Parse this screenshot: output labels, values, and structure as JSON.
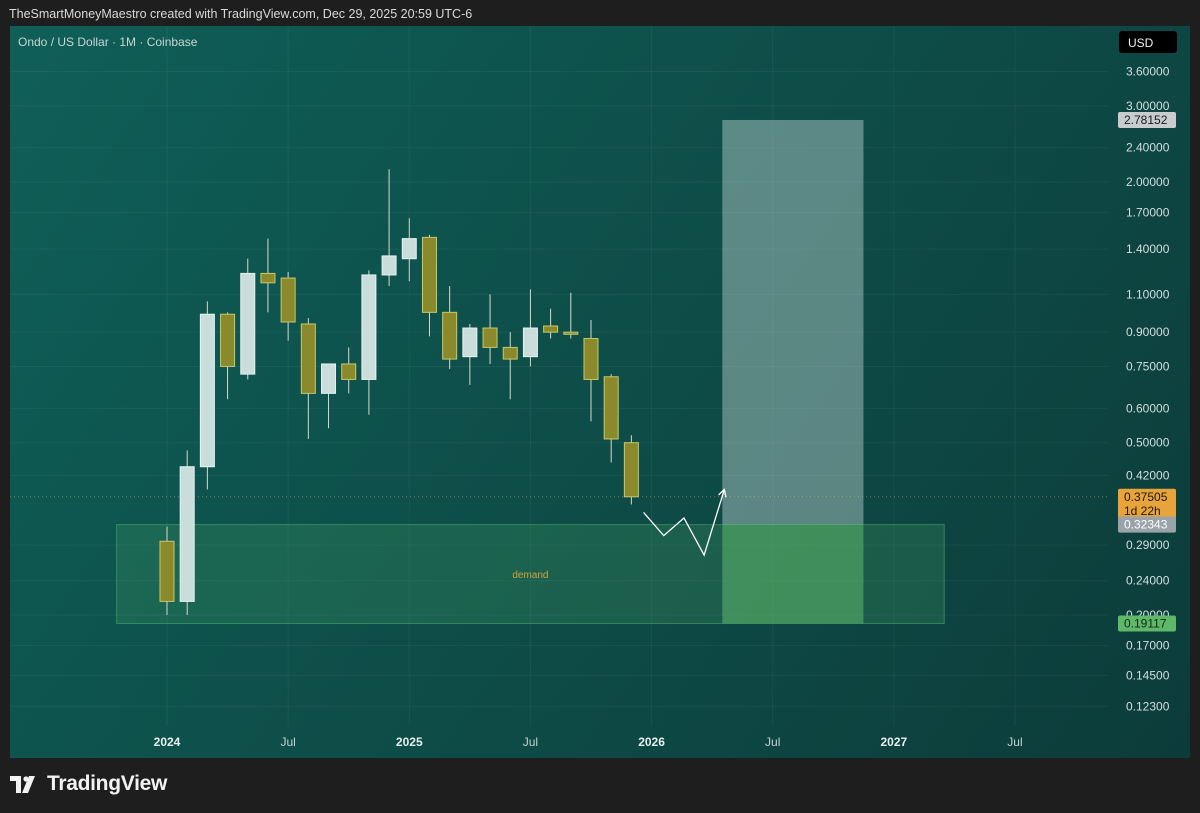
{
  "header": {
    "credit": "TheSmartMoneyMaestro created with TradingView.com, Dec 29, 2025 20:59 UTC-6"
  },
  "symbol": "Ondo / US Dollar · 1M · Coinbase",
  "currency_button": "USD",
  "branding": {
    "logo_text": "TradingView"
  },
  "colors": {
    "bull": "#c9dedb",
    "bear": "#8a8a2c",
    "wick": "#d8d8cc",
    "demand_fill": "#4fae6a",
    "target_fill": "#c9dedb",
    "price_tag": "#e8a33a",
    "entry_tag": "#9aa3a8",
    "target_tag": "#c9cccf",
    "stop_tag": "#5fb86a"
  },
  "price_tags": {
    "target": "2.78152",
    "current": "0.37505",
    "countdown": "1d 22h",
    "entry": "0.32343",
    "stop": "0.19117"
  },
  "annotations": {
    "demand_label": "demand"
  },
  "chart_data": {
    "type": "candlestick",
    "title": "Ondo / US Dollar · 1M · Coinbase",
    "y_scale": "log",
    "y_ticks": [
      "3.60000",
      "3.00000",
      "2.40000",
      "2.00000",
      "1.70000",
      "1.40000",
      "1.10000",
      "0.90000",
      "0.75000",
      "0.60000",
      "0.50000",
      "0.42000",
      "0.29000",
      "0.24000",
      "0.20000",
      "0.17000",
      "0.14500",
      "0.12300"
    ],
    "x_ticks": [
      {
        "label": "2024",
        "date": "2024-01",
        "bold": true
      },
      {
        "label": "Jul",
        "date": "2024-07",
        "bold": false
      },
      {
        "label": "2025",
        "date": "2025-01",
        "bold": true
      },
      {
        "label": "Jul",
        "date": "2025-07",
        "bold": false
      },
      {
        "label": "2026",
        "date": "2026-01",
        "bold": true
      },
      {
        "label": "Jul",
        "date": "2026-07",
        "bold": false
      },
      {
        "label": "2027",
        "date": "2027-01",
        "bold": true
      },
      {
        "label": "Jul",
        "date": "2027-07",
        "bold": false
      }
    ],
    "candles": [
      {
        "date": "2024-01",
        "open": 0.296,
        "high": 0.32,
        "low": 0.2,
        "close": 0.215
      },
      {
        "date": "2024-02",
        "open": 0.215,
        "high": 0.48,
        "low": 0.2,
        "close": 0.44
      },
      {
        "date": "2024-03",
        "open": 0.44,
        "high": 1.06,
        "low": 0.39,
        "close": 0.99
      },
      {
        "date": "2024-04",
        "open": 0.99,
        "high": 1.0,
        "low": 0.63,
        "close": 0.75
      },
      {
        "date": "2024-05",
        "open": 0.72,
        "high": 1.33,
        "low": 0.7,
        "close": 1.23
      },
      {
        "date": "2024-06",
        "open": 1.23,
        "high": 1.48,
        "low": 1.0,
        "close": 1.17
      },
      {
        "date": "2024-07",
        "open": 1.2,
        "high": 1.24,
        "low": 0.86,
        "close": 0.95
      },
      {
        "date": "2024-08",
        "open": 0.94,
        "high": 0.97,
        "low": 0.51,
        "close": 0.65
      },
      {
        "date": "2024-09",
        "open": 0.65,
        "high": 0.76,
        "low": 0.54,
        "close": 0.76
      },
      {
        "date": "2024-10",
        "open": 0.76,
        "high": 0.83,
        "low": 0.65,
        "close": 0.7
      },
      {
        "date": "2024-11",
        "open": 0.7,
        "high": 1.25,
        "low": 0.58,
        "close": 1.22
      },
      {
        "date": "2024-12",
        "open": 1.22,
        "high": 2.14,
        "low": 1.15,
        "close": 1.35
      },
      {
        "date": "2025-01",
        "open": 1.33,
        "high": 1.65,
        "low": 1.18,
        "close": 1.48
      },
      {
        "date": "2025-02",
        "open": 1.49,
        "high": 1.51,
        "low": 0.88,
        "close": 1.0
      },
      {
        "date": "2025-03",
        "open": 1.0,
        "high": 1.15,
        "low": 0.74,
        "close": 0.78
      },
      {
        "date": "2025-04",
        "open": 0.79,
        "high": 0.94,
        "low": 0.68,
        "close": 0.92
      },
      {
        "date": "2025-05",
        "open": 0.92,
        "high": 1.1,
        "low": 0.76,
        "close": 0.83
      },
      {
        "date": "2025-06",
        "open": 0.83,
        "high": 0.9,
        "low": 0.63,
        "close": 0.78
      },
      {
        "date": "2025-07",
        "open": 0.79,
        "high": 1.13,
        "low": 0.75,
        "close": 0.92
      },
      {
        "date": "2025-08",
        "open": 0.93,
        "high": 1.02,
        "low": 0.87,
        "close": 0.9
      },
      {
        "date": "2025-09",
        "open": 0.9,
        "high": 1.11,
        "low": 0.87,
        "close": 0.89
      },
      {
        "date": "2025-10",
        "open": 0.87,
        "high": 0.96,
        "low": 0.56,
        "close": 0.7
      },
      {
        "date": "2025-11",
        "open": 0.71,
        "high": 0.72,
        "low": 0.45,
        "close": 0.51
      },
      {
        "date": "2025-12",
        "open": 0.5,
        "high": 0.52,
        "low": 0.36,
        "close": 0.375
      }
    ],
    "zones": [
      {
        "label": "demand",
        "from": "2023-11",
        "to": "2027-03",
        "top": 0.32343,
        "bottom": 0.19117
      },
      {
        "from": "2026-05",
        "to": "2026-11",
        "top": 2.78152,
        "bottom": 0.32343
      },
      {
        "from": "2026-05",
        "to": "2026-11",
        "top": 0.32343,
        "bottom": 0.19117
      }
    ],
    "projection_path": [
      {
        "date": "2026-01",
        "price": 0.345
      },
      {
        "date": "2026-02",
        "price": 0.305
      },
      {
        "date": "2026-03",
        "price": 0.335
      },
      {
        "date": "2026-04",
        "price": 0.275
      },
      {
        "date": "2026-05",
        "price": 0.39
      }
    ]
  }
}
